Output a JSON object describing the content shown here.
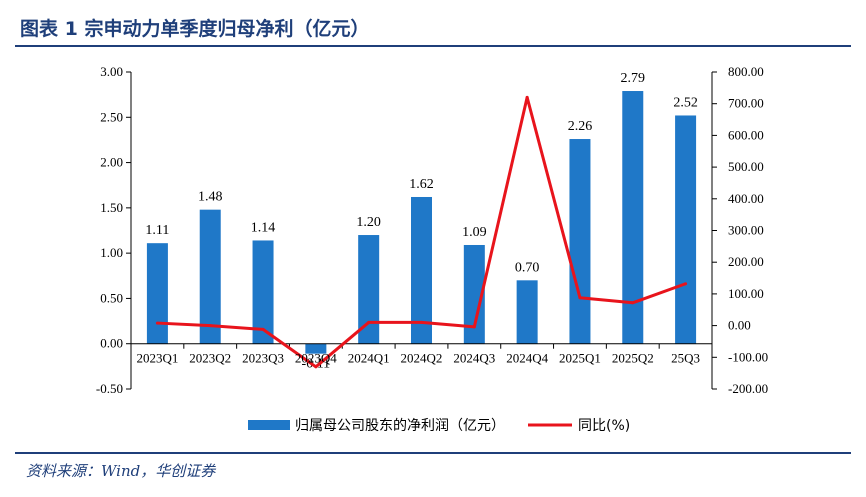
{
  "figure": {
    "title": "图表 1    宗申动力单季度归母净利（亿元）",
    "source": "资料来源：Wind，华创证券"
  },
  "colors": {
    "bar": "#1f78c8",
    "line": "#e8141c",
    "title": "#1f3f7a"
  },
  "chart_data": {
    "type": "bar",
    "categories": [
      "2023Q1",
      "2023Q2",
      "2023Q3",
      "2023Q4",
      "2024Q1",
      "2024Q2",
      "2024Q3",
      "2024Q4",
      "2025Q1",
      "2025Q2",
      "25Q3"
    ],
    "series": [
      {
        "name": "归属母公司股东的净利润（亿元）",
        "type": "bar",
        "axis": "left",
        "values": [
          1.11,
          1.48,
          1.14,
          -0.11,
          1.2,
          1.62,
          1.09,
          0.7,
          2.26,
          2.79,
          2.52
        ],
        "labels": [
          "1.11",
          "1.48",
          "1.14",
          "-0.11",
          "1.20",
          "1.62",
          "1.09",
          "0.70",
          "2.26",
          "2.79",
          "2.52"
        ]
      },
      {
        "name": "同比(%)",
        "type": "line",
        "axis": "right",
        "values": [
          8,
          0,
          -12,
          -130,
          10,
          10,
          -4,
          720,
          88,
          72,
          132
        ]
      }
    ],
    "left_axis": {
      "min": -0.5,
      "max": 3.0,
      "ticks": [
        "3.00",
        "2.50",
        "2.00",
        "1.50",
        "1.00",
        "0.50",
        "0.00",
        "-0.50"
      ]
    },
    "right_axis": {
      "min": -200,
      "max": 800,
      "ticks": [
        "800.00",
        "700.00",
        "600.00",
        "500.00",
        "400.00",
        "300.00",
        "200.00",
        "100.00",
        "0.00",
        "-100.00",
        "-200.00"
      ]
    },
    "grid": false,
    "legend": "bottom-center"
  }
}
